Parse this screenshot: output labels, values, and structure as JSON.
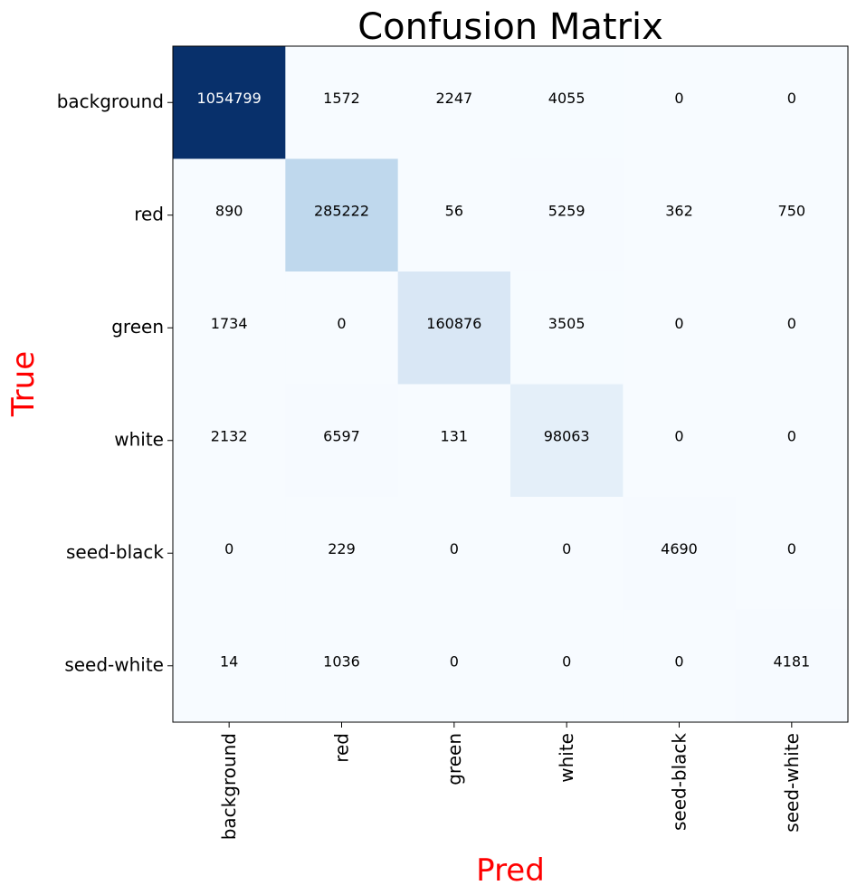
{
  "chart_data": {
    "type": "heatmap",
    "title": "Confusion Matrix",
    "xlabel": "Pred",
    "ylabel": "True",
    "label_color": "#ff0000",
    "colormap": "Blues",
    "colormap_low": "#f7fbff",
    "colormap_high": "#08306b",
    "text_color_dark_cells": "#ffffff",
    "text_color_light_cells": "#000000",
    "x_categories": [
      "background",
      "red",
      "green",
      "white",
      "seed-black",
      "seed-white"
    ],
    "y_categories": [
      "background",
      "red",
      "green",
      "white",
      "seed-black",
      "seed-white"
    ],
    "values": [
      [
        1054799,
        1572,
        2247,
        4055,
        0,
        0
      ],
      [
        890,
        285222,
        56,
        5259,
        362,
        750
      ],
      [
        1734,
        0,
        160876,
        3505,
        0,
        0
      ],
      [
        2132,
        6597,
        131,
        98063,
        0,
        0
      ],
      [
        0,
        229,
        0,
        0,
        4690,
        0
      ],
      [
        14,
        1036,
        0,
        0,
        0,
        4181
      ]
    ],
    "grid": false,
    "colorbar": false
  }
}
